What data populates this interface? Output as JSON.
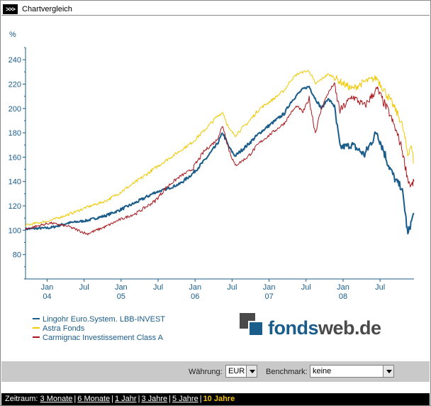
{
  "header": {
    "marker": ">>>",
    "title": "Chartvergleich"
  },
  "chart_data": {
    "type": "line",
    "ylabel": "%",
    "ylim": [
      60,
      250
    ],
    "yticks": [
      80,
      100,
      120,
      140,
      160,
      180,
      200,
      220,
      240
    ],
    "grid": false,
    "x_ticks": [
      {
        "month": "Jan",
        "year": "04",
        "t": 0.5
      },
      {
        "month": "Jul",
        "year": "",
        "t": 6.5
      },
      {
        "month": "Jan",
        "year": "05",
        "t": 12.5
      },
      {
        "month": "Jul",
        "year": "",
        "t": 18.5
      },
      {
        "month": "Jan",
        "year": "06",
        "t": 24.5
      },
      {
        "month": "Jul",
        "year": "",
        "t": 30.5
      },
      {
        "month": "Jan",
        "year": "07",
        "t": 36.5
      },
      {
        "month": "Jul",
        "year": "",
        "t": 42.5
      },
      {
        "month": "Jan",
        "year": "08",
        "t": 48.5
      },
      {
        "month": "Jul",
        "year": "",
        "t": 54.5
      }
    ],
    "x_range": [
      -3,
      60
    ],
    "series": [
      {
        "name": "Lingohr Euro.System. LBB-INVEST",
        "color": "#1a5c8a",
        "width": 2,
        "t": [
          -3,
          1,
          4,
          7,
          10,
          12,
          15,
          18,
          20,
          22,
          24,
          26,
          28,
          29,
          30,
          31,
          33,
          35,
          37,
          39,
          40,
          41,
          42,
          43,
          44,
          45,
          46,
          47,
          48,
          50,
          52,
          54,
          56,
          57,
          58,
          58.5,
          59,
          59.5,
          60
        ],
        "values": [
          101,
          102,
          106,
          108,
          112,
          116,
          123,
          131,
          134,
          138,
          146,
          157,
          170,
          180,
          168,
          161,
          170,
          180,
          188,
          196,
          205,
          211,
          216,
          218,
          208,
          200,
          208,
          203,
          168,
          170,
          162,
          181,
          152,
          141,
          135,
          118,
          96,
          106,
          114
        ]
      },
      {
        "name": "Astra Fonds",
        "color": "#f0c800",
        "width": 1,
        "t": [
          -3,
          1,
          4,
          7,
          10,
          12,
          15,
          18,
          20,
          22,
          24,
          26,
          28,
          29,
          30,
          31,
          33,
          35,
          37,
          39,
          40,
          41,
          42,
          43,
          44,
          45,
          46,
          47,
          48,
          50,
          52,
          54,
          56,
          57,
          58,
          58.5,
          59,
          59.5,
          60
        ],
        "values": [
          104,
          108,
          113,
          119,
          124,
          130,
          140,
          151,
          158,
          165,
          172,
          182,
          193,
          197,
          183,
          178,
          188,
          200,
          207,
          215,
          223,
          228,
          230,
          231,
          220,
          224,
          228,
          226,
          222,
          216,
          222,
          225,
          208,
          199,
          188,
          176,
          162,
          170,
          155
        ]
      },
      {
        "name": "Carmignac Investissement Class A",
        "color": "#a8161c",
        "width": 1,
        "t": [
          -3,
          1,
          4,
          7,
          10,
          12,
          15,
          18,
          20,
          22,
          24,
          26,
          28,
          29,
          30,
          31,
          33,
          35,
          37,
          39,
          40,
          41,
          42,
          43,
          44,
          45,
          46,
          47,
          48,
          50,
          52,
          54,
          56,
          57,
          58,
          58.5,
          59,
          59.5,
          60
        ],
        "values": [
          101,
          106,
          103,
          97,
          103,
          108,
          114,
          124,
          136,
          144,
          150,
          165,
          174,
          186,
          166,
          153,
          160,
          172,
          180,
          188,
          196,
          202,
          197,
          208,
          180,
          200,
          212,
          220,
          198,
          210,
          202,
          216,
          196,
          183,
          168,
          155,
          142,
          136,
          140
        ]
      }
    ]
  },
  "logo": {
    "part1": "fonds",
    "part2": "web.de"
  },
  "controls": {
    "waehrung_label": "Währung:",
    "waehrung_value": "EUR",
    "benchmark_label": "Benchmark:",
    "benchmark_value": "keine"
  },
  "zeitraum": {
    "label": "Zeitraum:",
    "options": [
      "3 Monate",
      "6 Monate",
      "1 Jahr",
      "3 Jahre",
      "5 Jahre"
    ],
    "active": "10 Jahre"
  }
}
